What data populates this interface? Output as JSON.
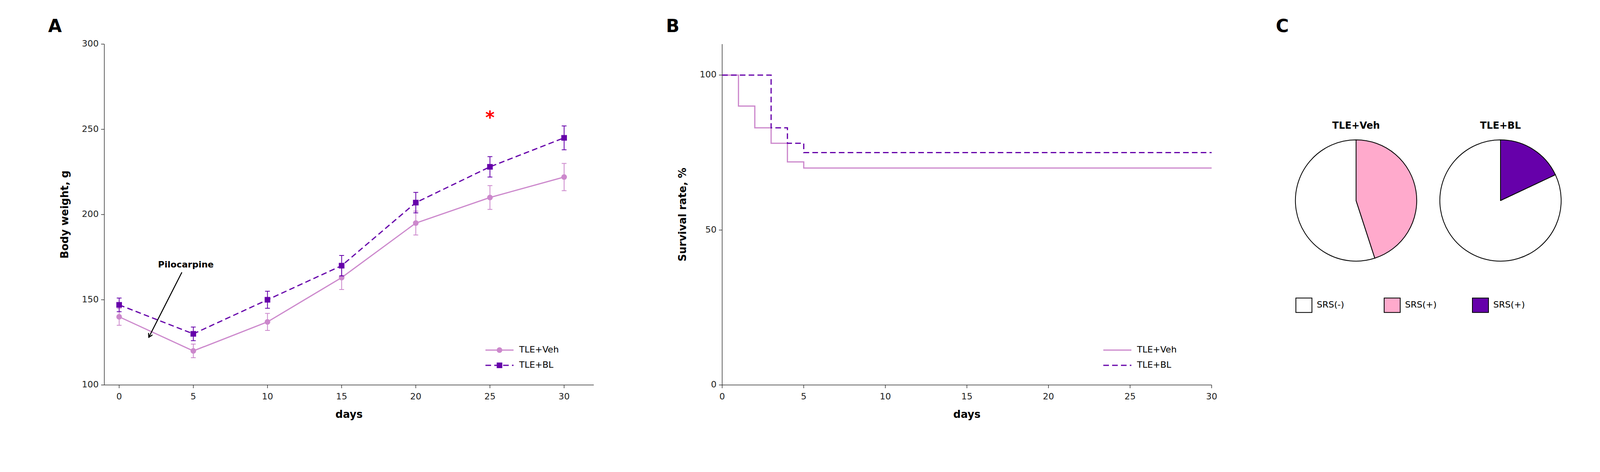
{
  "chart_data": [
    {
      "type": "line",
      "panel": "A",
      "xlabel": "days",
      "ylabel": "Body weight, g",
      "xlim": [
        -1,
        32
      ],
      "xticks": [
        0,
        5,
        10,
        15,
        20,
        25,
        30
      ],
      "ylim": [
        100,
        300
      ],
      "yticks": [
        100,
        150,
        200,
        250,
        300
      ],
      "grid": false,
      "legend": "lower right",
      "series": [
        {
          "name": "TLE+Veh",
          "color": "#cc88cc",
          "marker": "circle",
          "line_style": "solid",
          "x": [
            0,
            5,
            10,
            15,
            20,
            25,
            30
          ],
          "values": [
            140,
            120,
            137,
            163,
            195,
            210,
            222
          ],
          "errors": [
            5,
            4,
            5,
            7,
            7,
            7,
            8
          ]
        },
        {
          "name": "TLE+BL",
          "color": "#6600aa",
          "marker": "square",
          "line_style": "dashed",
          "x": [
            0,
            5,
            10,
            15,
            20,
            25,
            30
          ],
          "values": [
            147,
            130,
            150,
            170,
            207,
            228,
            245
          ],
          "errors": [
            4,
            4,
            5,
            6,
            6,
            6,
            7
          ]
        }
      ],
      "annotations": [
        {
          "text": "Pilocarpine",
          "x": 4.5,
          "y": 168,
          "arrow_x": 2,
          "arrow_y": 128
        },
        {
          "text": "*",
          "x": 25,
          "y": 257,
          "color": "red"
        }
      ]
    },
    {
      "type": "step",
      "panel": "B",
      "xlabel": "days",
      "ylabel": "Survival rate, %",
      "xlim": [
        0,
        30
      ],
      "xticks": [
        0,
        5,
        10,
        15,
        20,
        25,
        30
      ],
      "ylim": [
        0,
        110
      ],
      "yticks": [
        0,
        50,
        100
      ],
      "grid": false,
      "legend": "lower right",
      "series": [
        {
          "name": "TLE+Veh",
          "color": "#cc88cc",
          "line_style": "solid",
          "x": [
            0,
            1,
            2,
            3,
            4,
            5,
            30
          ],
          "values": [
            100,
            90,
            83,
            78,
            72,
            70,
            70
          ]
        },
        {
          "name": "TLE+BL",
          "color": "#6600aa",
          "line_style": "dashed",
          "x": [
            0,
            3,
            4,
            5,
            30
          ],
          "values": [
            100,
            83,
            78,
            75,
            75
          ]
        }
      ]
    },
    {
      "type": "pie",
      "panel": "C",
      "series": [
        {
          "name": "TLE+Veh",
          "values": [
            55,
            45
          ],
          "colors": [
            "#ffffff",
            "#ffaacc"
          ]
        },
        {
          "name": "TLE+BL",
          "values": [
            82,
            18
          ],
          "colors": [
            "#ffffff",
            "#6600aa"
          ]
        }
      ],
      "legend_items": [
        {
          "name": "SRS(-)",
          "color": "#ffffff"
        },
        {
          "name": "SRS(+)",
          "color": "#ffaacc"
        },
        {
          "name": "SRS(+)",
          "color": "#6600aa"
        }
      ]
    }
  ]
}
